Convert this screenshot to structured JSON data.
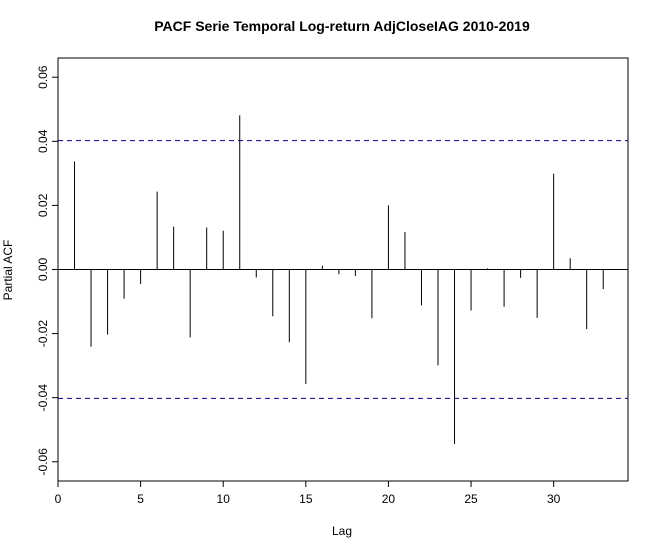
{
  "chart_data": {
    "type": "bar",
    "title": "PACF Serie Temporal Log-return AdjCloseIAG 2010-2019",
    "xlabel": "Lag",
    "ylabel": "Partial ACF",
    "xlim": [
      0,
      34.5
    ],
    "ylim": [
      -0.066,
      0.066
    ],
    "x_ticks": [
      0,
      5,
      10,
      15,
      20,
      25,
      30
    ],
    "y_ticks": [
      -0.06,
      -0.04,
      -0.02,
      0.0,
      0.02,
      0.04,
      0.06
    ],
    "x_tick_labels": [
      "0",
      "5",
      "10",
      "15",
      "20",
      "25",
      "30"
    ],
    "y_tick_labels": [
      "-0.06",
      "-0.04",
      "-0.02",
      "0.00",
      "0.02",
      "0.04",
      "0.06"
    ],
    "confidence_bounds": [
      0.0402,
      -0.0402
    ],
    "lags": [
      1,
      2,
      3,
      4,
      5,
      6,
      7,
      8,
      9,
      10,
      11,
      12,
      13,
      14,
      15,
      16,
      17,
      18,
      19,
      20,
      21,
      22,
      23,
      24,
      25,
      26,
      27,
      28,
      29,
      30,
      31,
      32,
      33
    ],
    "values": [
      0.0337,
      -0.0241,
      -0.0203,
      -0.0091,
      -0.0045,
      0.0243,
      0.0134,
      -0.0212,
      0.0131,
      0.0121,
      0.0481,
      -0.0025,
      -0.0146,
      -0.0227,
      -0.0357,
      0.0012,
      -0.0015,
      -0.002,
      -0.0152,
      0.02,
      0.0117,
      -0.0112,
      -0.0299,
      -0.0545,
      -0.0128,
      0.0004,
      -0.0116,
      -0.0026,
      -0.0151,
      0.0299,
      0.0035,
      -0.0186,
      -0.0061
    ],
    "colors": {
      "bar": "#000000",
      "bound": "#00008b",
      "zero": "#000000"
    }
  }
}
